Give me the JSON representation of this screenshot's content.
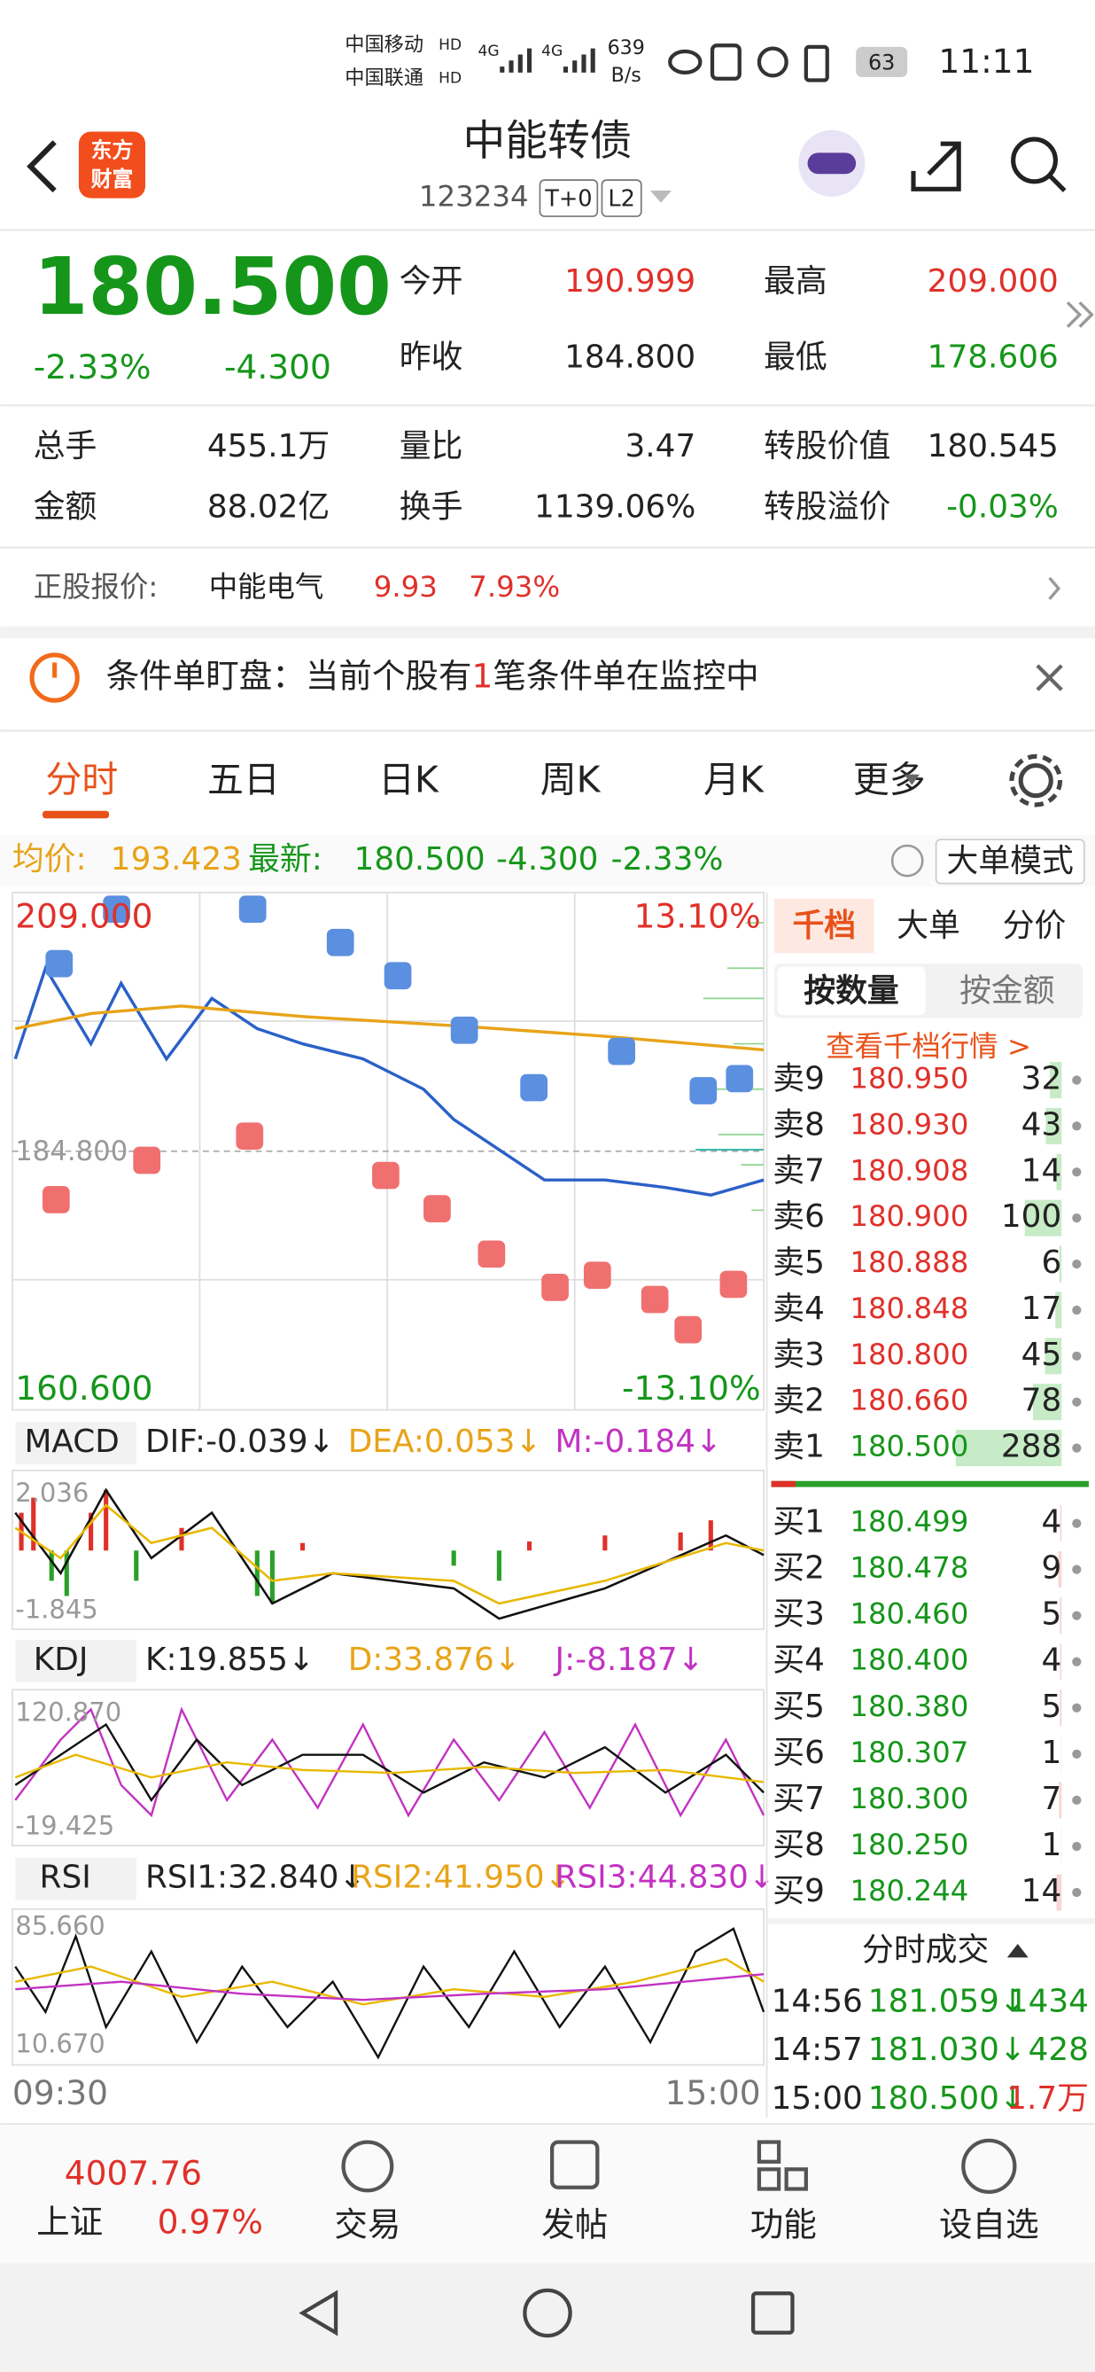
{
  "status": {
    "carrier1": "中国移动",
    "carrier2": "中国联通",
    "hd": "HD",
    "net": "4G",
    "speed": "639",
    "speed_unit": "B/s",
    "battery": "63",
    "time": "11:11"
  },
  "header": {
    "logo": [
      "东方",
      "财富"
    ],
    "title": "中能转债",
    "code": "123234",
    "tags": [
      "T+0",
      "L2"
    ]
  },
  "quote": {
    "price": "180.500",
    "change_pct": "-2.33%",
    "change": "-4.300",
    "fields": [
      {
        "label": "今开",
        "value": "190.999"
      },
      {
        "label": "最高",
        "value": "209.000"
      },
      {
        "label": "昨收",
        "value": "184.800"
      },
      {
        "label": "最低",
        "value": "178.606"
      }
    ],
    "stats": [
      {
        "label": "总手",
        "value": "455.1万"
      },
      {
        "label": "量比",
        "value": "3.47"
      },
      {
        "label": "转股价值",
        "value": "180.545"
      },
      {
        "label": "金额",
        "value": "88.02亿"
      },
      {
        "label": "换手",
        "value": "1139.06%"
      },
      {
        "label": "转股溢价",
        "value": "-0.03%"
      }
    ]
  },
  "stock": {
    "label": "正股报价:",
    "name": "中能电气",
    "price": "9.93",
    "pct": "7.93%"
  },
  "alert": {
    "text1": "条件单盯盘：当前个股有",
    "count": "1",
    "text2": "笔条件单在监控中"
  },
  "tabs": [
    "分时",
    "五日",
    "日K",
    "周K",
    "月K",
    "更多"
  ],
  "info": {
    "avg_label": "均价:",
    "avg": "193.423",
    "latest_label": "最新:",
    "latest": "180.500",
    "change": "-4.300",
    "pct": "-2.33%",
    "mode": "大单模式"
  },
  "chart": {
    "top": "209.000",
    "bottom": "160.600",
    "mid": "184.800",
    "pct_top": "13.10%",
    "pct_bottom": "-13.10%",
    "x_start": "09:30",
    "x_end": "15:00"
  },
  "macd": {
    "name": "MACD",
    "dif": "DIF:-0.039↓",
    "dea": "DEA:0.053↓",
    "m": "M:-0.184↓",
    "top": "2.036",
    "bottom": "-1.845"
  },
  "kdj": {
    "name": "KDJ",
    "k": "K:19.855↓",
    "d": "D:33.876↓",
    "j": "J:-8.187↓",
    "top": "120.870",
    "bottom": "-19.425"
  },
  "rsi": {
    "name": "RSI",
    "r1": "RSI1:32.840↓",
    "r2": "RSI2:41.950↓",
    "r3": "RSI3:44.830↓",
    "top": "85.660",
    "bottom": "10.670"
  },
  "panel": {
    "tabs": [
      "千档",
      "大单",
      "分价"
    ],
    "sub": [
      "按数量",
      "按金额"
    ],
    "link": "查看千档行情 >",
    "asks": [
      [
        "卖9",
        "180.950",
        "32"
      ],
      [
        "卖8",
        "180.930",
        "43"
      ],
      [
        "卖7",
        "180.908",
        "14"
      ],
      [
        "卖6",
        "180.900",
        "100"
      ],
      [
        "卖5",
        "180.888",
        "6"
      ],
      [
        "卖4",
        "180.848",
        "17"
      ],
      [
        "卖3",
        "180.800",
        "45"
      ],
      [
        "卖2",
        "180.660",
        "78"
      ],
      [
        "卖1",
        "180.500",
        "288"
      ]
    ],
    "bids": [
      [
        "买1",
        "180.499",
        "4"
      ],
      [
        "买2",
        "180.478",
        "9"
      ],
      [
        "买3",
        "180.460",
        "5"
      ],
      [
        "买4",
        "180.400",
        "4"
      ],
      [
        "买5",
        "180.380",
        "5"
      ],
      [
        "买6",
        "180.307",
        "1"
      ],
      [
        "买7",
        "180.300",
        "7"
      ],
      [
        "买8",
        "180.250",
        "1"
      ],
      [
        "买9",
        "180.244",
        "14"
      ]
    ],
    "trades_title": "分时成交",
    "trades": [
      [
        "14:56",
        "181.059↓",
        "1434"
      ],
      [
        "14:57",
        "181.030↓",
        "428"
      ],
      [
        "15:00",
        "180.500↓",
        "1.7万"
      ]
    ]
  },
  "bottom": {
    "index": "4007.76",
    "index_name": "上证",
    "index_pct": "0.97%",
    "items": [
      "交易",
      "发帖",
      "功能",
      "设自选"
    ]
  }
}
